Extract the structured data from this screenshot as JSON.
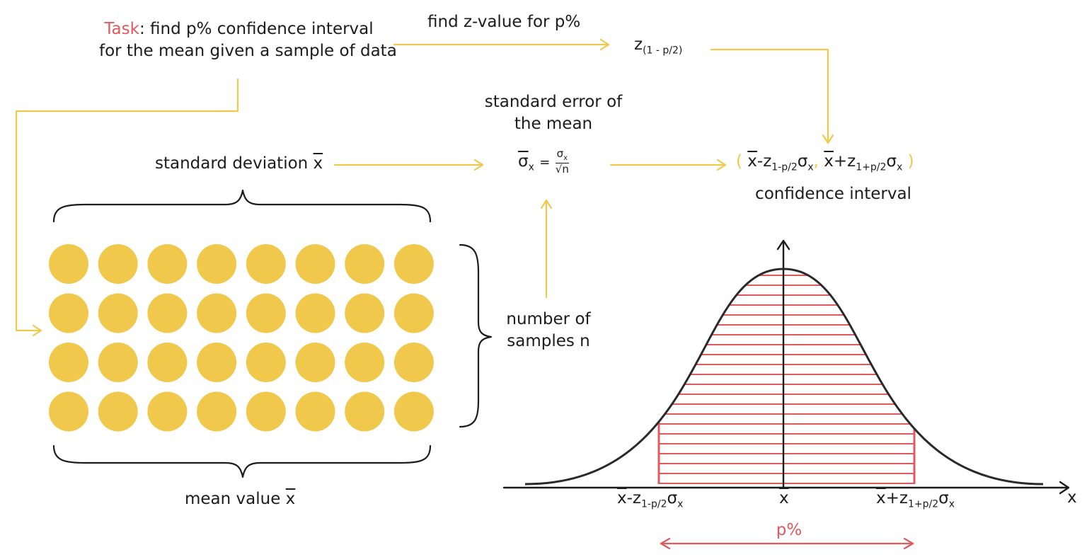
{
  "task": {
    "prefix": "Task",
    "line1_rest": ": find p% confidence interval",
    "line2": "for the mean given a sample of data"
  },
  "find_z": "find z-value for p%",
  "z_value": {
    "symbol": "z",
    "subscript": "(1 - p/2)"
  },
  "std_error": {
    "title_line1": "standard error of",
    "title_line2": "the mean",
    "lhs_symbol": "σ",
    "lhs_sub": "x",
    "equals": "=",
    "frac_num": "σ",
    "frac_num_sub": "x",
    "frac_den": "√n"
  },
  "std_dev": {
    "text": "standard deviation ",
    "symbol": "x"
  },
  "mean_value": {
    "text": "mean value ",
    "symbol": "x"
  },
  "num_samples": {
    "line1": "number of",
    "line2": "samples n"
  },
  "ci": {
    "open": "(",
    "comma": ",",
    "close": ")",
    "label": "confidence interval",
    "lower": {
      "x": "x",
      "minus": "-z",
      "sub": "1-p/2",
      "sigma": "σ",
      "sigma_sub": "x"
    },
    "upper": {
      "x": "x",
      "plus": "+z",
      "sub": "1+p/2",
      "sigma": "σ",
      "sigma_sub": "x"
    }
  },
  "axis": {
    "x_label": "x",
    "center": "x",
    "lower": {
      "x": "x",
      "minus": "-z",
      "sub": "1-p/2",
      "sigma": "σ",
      "sigma_sub": "x"
    },
    "upper": {
      "x": "x",
      "plus": "+z",
      "sub": "1+p/2",
      "sigma": "σ",
      "sigma_sub": "x"
    }
  },
  "p_percent": "p%",
  "dots": {
    "rows": 4,
    "cols": 8
  },
  "colors": {
    "accent": "#f0c84c",
    "highlight": "#e0595d",
    "ink": "#1c1c1c"
  },
  "icons": [
    "arrow-right-icon",
    "arrow-down-icon",
    "arrow-up-icon",
    "curly-brace-icon",
    "double-arrow-icon"
  ]
}
